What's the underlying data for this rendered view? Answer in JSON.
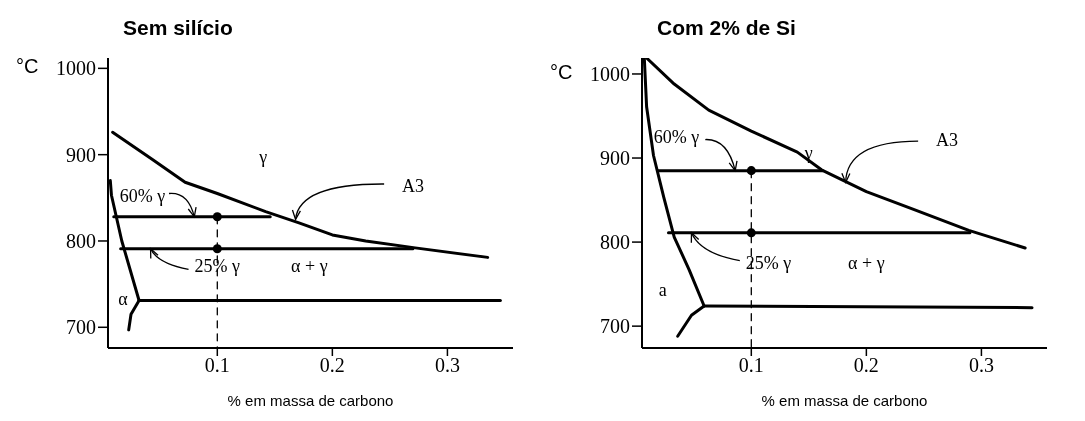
{
  "chart_data": [
    {
      "type": "line",
      "title": "Sem silício",
      "xlabel": "% em massa de carbono",
      "ylabel": "°C",
      "xlim": [
        0.005,
        0.357
      ],
      "ylim": [
        676,
        1012
      ],
      "xticks": [
        0.1,
        0.2,
        0.3
      ],
      "yticks": [
        700,
        800,
        900,
        1000
      ],
      "grid": false,
      "series": [
        {
          "color": "#000000",
          "x": [
            0.009,
            0.043,
            0.072,
            0.1,
            0.142,
            0.171,
            0.2,
            0.229,
            0.272,
            0.335
          ],
          "values": [
            926,
            895,
            868,
            855,
            834,
            821,
            807,
            800,
            792,
            781
          ]
        },
        {
          "color": "#000000",
          "x": [
            0.007,
            0.008,
            0.017,
            0.032
          ],
          "values": [
            870,
            853,
            800,
            731
          ]
        },
        {
          "color": "#000000",
          "x": [
            0.032,
            0.346
          ],
          "values": [
            731,
            731
          ]
        },
        {
          "color": "#000000",
          "x": [
            0.032,
            0.025,
            0.023
          ],
          "values": [
            731,
            715,
            697
          ]
        },
        {
          "color": "#000000",
          "x": [
            0.01,
            0.146
          ],
          "values": [
            828,
            828
          ]
        },
        {
          "color": "#000000",
          "x": [
            0.016,
            0.27
          ],
          "values": [
            791,
            791
          ]
        },
        {
          "color": "#000000",
          "line_style": "dashed",
          "x": [
            0.1,
            0.1
          ],
          "values": [
            828,
            676
          ]
        },
        {
          "type": "scatter",
          "marker": "circle",
          "color": "#000000",
          "x": [
            0.1,
            0.1
          ],
          "values": [
            828,
            791
          ]
        }
      ],
      "annotations": [
        "γ",
        {
          "text": "A3",
          "x": 0.168,
          "y": 825
        },
        {
          "text": "60% γ",
          "x": 0.08,
          "y": 828
        },
        {
          "text": "25% γ",
          "x": 0.042,
          "y": 791
        },
        "α + γ",
        "α"
      ]
    },
    {
      "type": "line",
      "title": "Com 2% de Si",
      "xlabel": "% em massa de carbono",
      "ylabel": "°C",
      "xlim": [
        0.005,
        0.357
      ],
      "ylim": [
        674,
        1019
      ],
      "xticks": [
        0.1,
        0.2,
        0.3
      ],
      "yticks": [
        700,
        800,
        900,
        1000
      ],
      "grid": false,
      "series": [
        {
          "color": "#000000",
          "x": [
            0.009,
            0.033,
            0.063,
            0.1,
            0.14,
            0.161,
            0.2,
            0.241,
            0.289,
            0.338
          ],
          "values": [
            1019,
            988,
            957,
            932,
            907,
            886,
            860,
            839,
            814,
            793
          ]
        },
        {
          "color": "#000000",
          "x": [
            0.007,
            0.009,
            0.015,
            0.024,
            0.033,
            0.046,
            0.059
          ],
          "values": [
            1019,
            961,
            903,
            853,
            806,
            767,
            724
          ]
        },
        {
          "color": "#000000",
          "x": [
            0.059,
            0.344
          ],
          "values": [
            724,
            722
          ]
        },
        {
          "color": "#000000",
          "x": [
            0.059,
            0.048,
            0.036
          ],
          "values": [
            724,
            713,
            688
          ]
        },
        {
          "color": "#000000",
          "x": [
            0.019,
            0.162
          ],
          "values": [
            885,
            885
          ]
        },
        {
          "color": "#000000",
          "x": [
            0.028,
            0.29
          ],
          "values": [
            811,
            811
          ]
        },
        {
          "color": "#000000",
          "line_style": "dashed",
          "x": [
            0.1,
            0.1
          ],
          "values": [
            885,
            674
          ]
        },
        {
          "type": "scatter",
          "marker": "circle",
          "color": "#000000",
          "x": [
            0.1,
            0.1
          ],
          "values": [
            885,
            811
          ]
        }
      ],
      "annotations": [
        "γ",
        {
          "text": "A3",
          "x": 0.182,
          "y": 871
        },
        {
          "text": "60% γ",
          "x": 0.086,
          "y": 885
        },
        {
          "text": "25% γ",
          "x": 0.048,
          "y": 811
        },
        "α + γ",
        "a"
      ]
    }
  ]
}
